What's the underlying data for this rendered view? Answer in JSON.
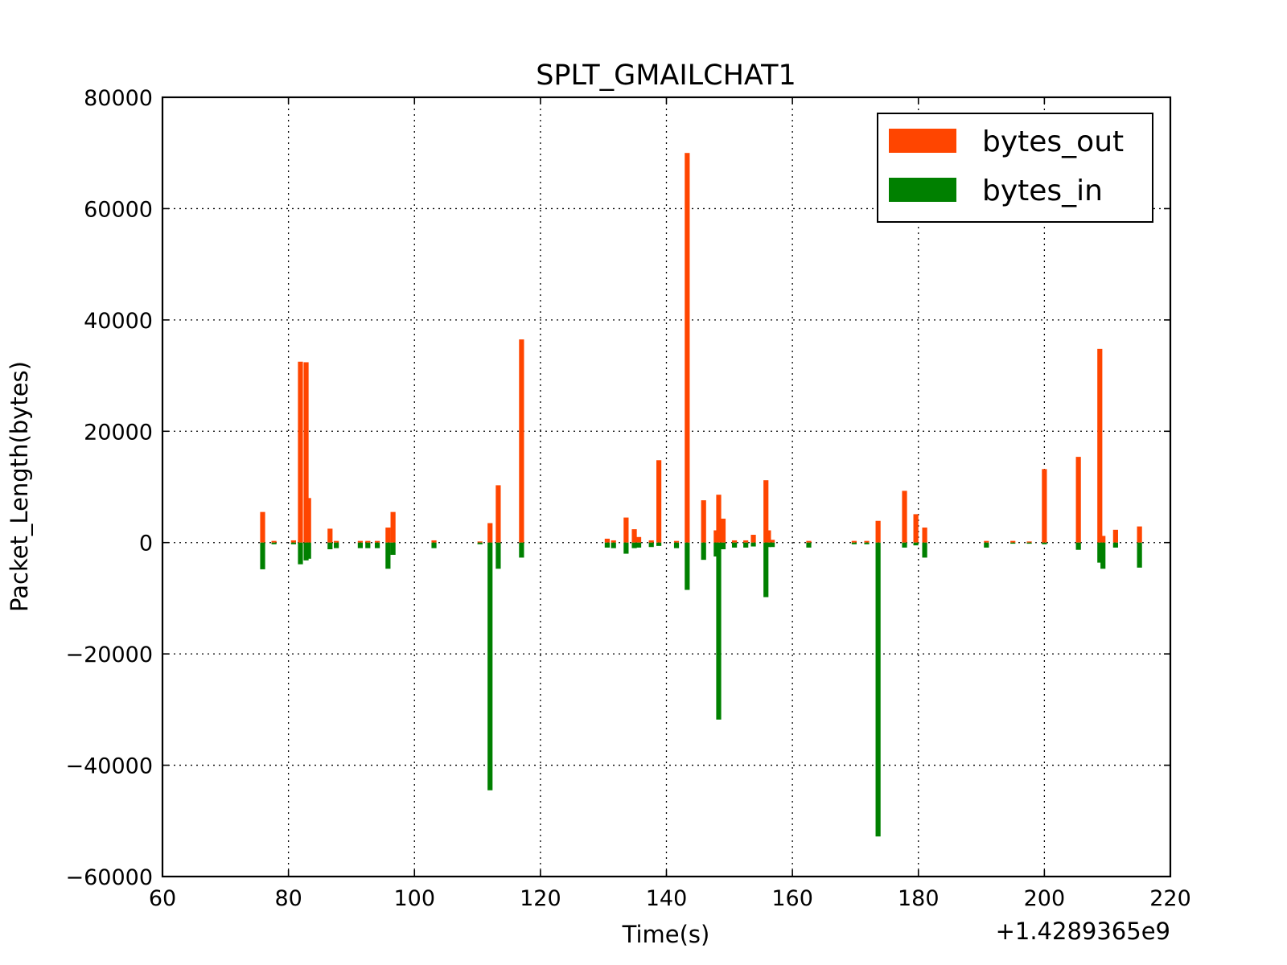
{
  "chart_data": {
    "type": "bar",
    "title": "SPLT_GMAILCHAT1",
    "xlabel": "Time(s)",
    "ylabel": "Packet_Length(bytes)",
    "x_offset_label": "+1.4289365e9",
    "xlim": [
      60,
      220
    ],
    "ylim": [
      -60000,
      80000
    ],
    "x_ticks": [
      60,
      80,
      100,
      120,
      140,
      160,
      180,
      200,
      220
    ],
    "y_ticks": [
      80000,
      60000,
      40000,
      20000,
      0,
      -20000,
      -40000,
      -60000
    ],
    "x_tick_labels": [
      "60",
      "80",
      "100",
      "120",
      "140",
      "160",
      "180",
      "200",
      "220"
    ],
    "y_tick_labels": [
      "80000",
      "60000",
      "40000",
      "20000",
      "0",
      "−20000",
      "−40000",
      "−60000"
    ],
    "grid": true,
    "legend_position": "top-right",
    "series": [
      {
        "name": "bytes_out",
        "color": "#ff4500",
        "x": [
          75.9,
          77.7,
          80.8,
          81.9,
          82.8,
          83.2,
          86.6,
          87.6,
          91.4,
          92.6,
          94.1,
          95.8,
          96.6,
          103.1,
          110.4,
          112.0,
          113.3,
          117.0,
          130.6,
          131.6,
          133.6,
          134.9,
          135.6,
          137.6,
          138.8,
          141.6,
          143.3,
          145.9,
          147.9,
          148.3,
          149.0,
          150.8,
          152.6,
          153.8,
          155.8,
          156.2,
          156.8,
          162.6,
          169.8,
          171.8,
          173.6,
          177.8,
          179.6,
          181.0,
          190.8,
          195.0,
          197.6,
          200.0,
          205.4,
          208.8,
          209.3,
          211.3,
          215.1
        ],
        "values": [
          5500,
          300,
          400,
          32500,
          32400,
          8000,
          2500,
          300,
          300,
          300,
          300,
          2700,
          5500,
          400,
          200,
          3500,
          10300,
          36500,
          700,
          400,
          4500,
          2400,
          1000,
          400,
          14800,
          300,
          70000,
          7600,
          2200,
          8600,
          4300,
          400,
          400,
          1400,
          11200,
          2200,
          500,
          300,
          300,
          300,
          3900,
          9300,
          5100,
          2700,
          300,
          300,
          200,
          13200,
          15400,
          34800,
          1200,
          2300,
          2900
        ]
      },
      {
        "name": "bytes_in",
        "color": "#008000",
        "x": [
          75.9,
          77.7,
          80.8,
          81.9,
          82.8,
          83.2,
          86.6,
          87.6,
          91.4,
          92.6,
          94.1,
          95.8,
          96.6,
          103.1,
          110.4,
          112.0,
          113.3,
          117.0,
          130.6,
          131.6,
          133.6,
          134.9,
          135.6,
          137.6,
          138.8,
          141.6,
          143.3,
          145.9,
          147.9,
          148.3,
          149.0,
          150.8,
          152.6,
          153.8,
          155.8,
          156.2,
          156.8,
          162.6,
          169.8,
          171.8,
          173.6,
          177.8,
          179.6,
          181.0,
          190.8,
          195.0,
          197.6,
          200.0,
          205.4,
          208.8,
          209.3,
          211.3,
          215.1
        ],
        "values": [
          -4800,
          -300,
          -300,
          -3900,
          -3200,
          -2900,
          -1200,
          -1000,
          -1000,
          -1000,
          -1000,
          -4700,
          -2200,
          -1000,
          -300,
          -44500,
          -4700,
          -2700,
          -900,
          -1000,
          -2000,
          -1000,
          -900,
          -800,
          -600,
          -1000,
          -8500,
          -3100,
          -2500,
          -31800,
          -1200,
          -900,
          -900,
          -700,
          -9800,
          -800,
          -800,
          -900,
          -300,
          -300,
          -52800,
          -900,
          -500,
          -2700,
          -900,
          -200,
          -200,
          -300,
          -1300,
          -3600,
          -4700,
          -900,
          -4500
        ]
      }
    ]
  }
}
